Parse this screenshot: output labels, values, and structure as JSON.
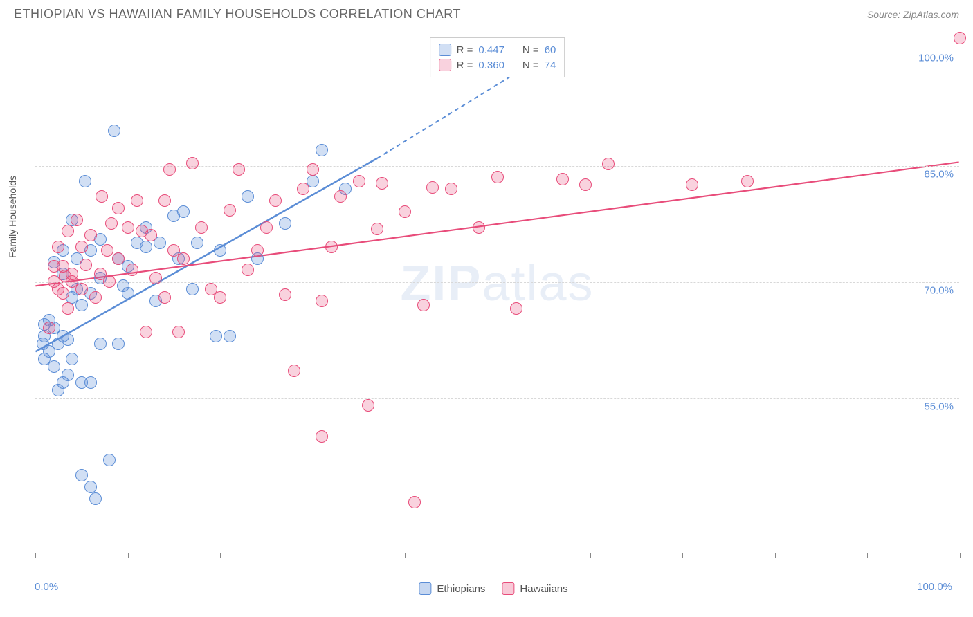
{
  "header": {
    "title": "ETHIOPIAN VS HAWAIIAN FAMILY HOUSEHOLDS CORRELATION CHART",
    "source": "Source: ZipAtlas.com"
  },
  "chart": {
    "type": "scatter",
    "y_axis_title": "Family Households",
    "xlim": [
      0,
      100
    ],
    "ylim": [
      35,
      102
    ],
    "x_ticks": [
      0,
      10,
      20,
      30,
      40,
      50,
      60,
      70,
      80,
      90,
      100
    ],
    "x_labels_shown": {
      "min": "0.0%",
      "max": "100.0%"
    },
    "y_gridlines": [
      55,
      70,
      85,
      100
    ],
    "y_labels": [
      "55.0%",
      "70.0%",
      "85.0%",
      "100.0%"
    ],
    "grid_color": "#d8d8d8",
    "axis_color": "#888888",
    "label_color": "#5b8dd6",
    "label_fontsize": 15,
    "background_color": "#ffffff",
    "marker_radius": 9,
    "marker_stroke_width": 1.5,
    "marker_fill_opacity": 0.28,
    "watermark": "ZIPatlas",
    "series": [
      {
        "name": "Ethiopians",
        "color": "#5b8dd6",
        "fill": "rgba(91,141,214,0.28)",
        "R": "0.447",
        "N": "60",
        "trend": {
          "x1": 0,
          "y1": 61,
          "x2": 37,
          "y2": 86,
          "dash_to_x": 52,
          "dash_to_y": 97,
          "line_width": 2.5
        },
        "points": [
          [
            0.8,
            62
          ],
          [
            1,
            63
          ],
          [
            1,
            64.5
          ],
          [
            1,
            60
          ],
          [
            1.5,
            61
          ],
          [
            1.5,
            65
          ],
          [
            2,
            72.5
          ],
          [
            2,
            59
          ],
          [
            2,
            64
          ],
          [
            2.5,
            62
          ],
          [
            2.5,
            56
          ],
          [
            3,
            57
          ],
          [
            3,
            63
          ],
          [
            3,
            71
          ],
          [
            3,
            74
          ],
          [
            3.5,
            58
          ],
          [
            3.5,
            62.5
          ],
          [
            4,
            60
          ],
          [
            4,
            68
          ],
          [
            4,
            78
          ],
          [
            4.5,
            73
          ],
          [
            4.5,
            69
          ],
          [
            5,
            45
          ],
          [
            5,
            57
          ],
          [
            5,
            67
          ],
          [
            5.4,
            83
          ],
          [
            6,
            43.5
          ],
          [
            6,
            57
          ],
          [
            6,
            74
          ],
          [
            6,
            68.5
          ],
          [
            6.5,
            42
          ],
          [
            7,
            62
          ],
          [
            7,
            75.5
          ],
          [
            7,
            70.5
          ],
          [
            8,
            47
          ],
          [
            8.5,
            89.5
          ],
          [
            9,
            62
          ],
          [
            9,
            73
          ],
          [
            9.5,
            69.5
          ],
          [
            10,
            72
          ],
          [
            10,
            68.5
          ],
          [
            11,
            75
          ],
          [
            12,
            74.5
          ],
          [
            12,
            77
          ],
          [
            13,
            67.5
          ],
          [
            13.5,
            75
          ],
          [
            15,
            78.5
          ],
          [
            15.5,
            73
          ],
          [
            16,
            79
          ],
          [
            17,
            69
          ],
          [
            17.5,
            75
          ],
          [
            19.5,
            63
          ],
          [
            20,
            74
          ],
          [
            21,
            63
          ],
          [
            23,
            81
          ],
          [
            24,
            73
          ],
          [
            27,
            77.5
          ],
          [
            30,
            83
          ],
          [
            31,
            87
          ],
          [
            33.5,
            82
          ]
        ]
      },
      {
        "name": "Hawaiians",
        "color": "#e84c7a",
        "fill": "rgba(232,76,122,0.25)",
        "R": "0.360",
        "N": "74",
        "trend": {
          "x1": 0,
          "y1": 69.5,
          "x2": 100,
          "y2": 85.5,
          "line_width": 2.2
        },
        "points": [
          [
            1.5,
            64
          ],
          [
            2,
            70
          ],
          [
            2,
            72
          ],
          [
            2.5,
            69
          ],
          [
            2.5,
            74.5
          ],
          [
            3,
            68.5
          ],
          [
            3,
            72
          ],
          [
            3.2,
            70.7
          ],
          [
            3.5,
            66.5
          ],
          [
            3.5,
            76.5
          ],
          [
            4,
            71
          ],
          [
            4,
            70
          ],
          [
            4.5,
            78
          ],
          [
            5,
            69
          ],
          [
            5,
            74.5
          ],
          [
            5.5,
            72.2
          ],
          [
            6,
            76
          ],
          [
            6.5,
            68
          ],
          [
            7,
            71
          ],
          [
            7.2,
            81
          ],
          [
            7.8,
            74
          ],
          [
            8,
            70
          ],
          [
            8.2,
            77.5
          ],
          [
            9,
            73
          ],
          [
            9,
            79.5
          ],
          [
            10,
            77
          ],
          [
            10.5,
            71.5
          ],
          [
            11,
            80.5
          ],
          [
            11.5,
            76.5
          ],
          [
            12,
            63.5
          ],
          [
            12.5,
            76
          ],
          [
            13,
            70.5
          ],
          [
            14,
            68
          ],
          [
            14,
            80.5
          ],
          [
            14.5,
            84.5
          ],
          [
            15,
            74
          ],
          [
            15.5,
            63.5
          ],
          [
            16,
            73
          ],
          [
            17,
            85.3
          ],
          [
            18,
            77
          ],
          [
            19,
            69
          ],
          [
            20,
            68
          ],
          [
            21,
            79.2
          ],
          [
            22,
            84.5
          ],
          [
            23,
            71.5
          ],
          [
            24,
            74
          ],
          [
            25,
            77
          ],
          [
            26,
            80.5
          ],
          [
            27,
            68.3
          ],
          [
            28,
            58.5
          ],
          [
            29,
            82
          ],
          [
            30,
            84.5
          ],
          [
            31,
            67.5
          ],
          [
            31,
            50
          ],
          [
            32,
            74.5
          ],
          [
            33,
            81
          ],
          [
            35,
            83
          ],
          [
            36,
            54
          ],
          [
            37,
            76.8
          ],
          [
            37.5,
            82.7
          ],
          [
            40,
            79
          ],
          [
            41,
            41.5
          ],
          [
            42,
            67
          ],
          [
            43,
            82.2
          ],
          [
            45,
            82
          ],
          [
            48,
            77
          ],
          [
            50,
            83.5
          ],
          [
            52,
            66.5
          ],
          [
            57,
            83.2
          ],
          [
            59.5,
            82.5
          ],
          [
            62,
            85.2
          ],
          [
            71,
            82.5
          ],
          [
            77,
            83
          ],
          [
            100,
            101.5
          ]
        ]
      }
    ],
    "legend": {
      "items": [
        {
          "label": "Ethiopians",
          "fill": "rgba(91,141,214,0.35)",
          "stroke": "#5b8dd6"
        },
        {
          "label": "Hawaiians",
          "fill": "rgba(232,76,122,0.30)",
          "stroke": "#e84c7a"
        }
      ]
    }
  }
}
